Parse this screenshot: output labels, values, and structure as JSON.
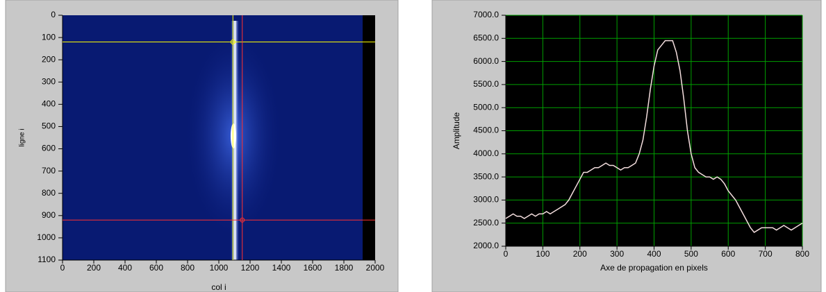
{
  "chart_data": [
    {
      "type": "intensity",
      "xlabel": "col i",
      "ylabel": "ligne i",
      "xlim": [
        0,
        2000
      ],
      "xticks": [
        0,
        200,
        400,
        600,
        800,
        1000,
        1200,
        1400,
        1600,
        1800,
        2000
      ],
      "ylim": [
        0,
        1100
      ],
      "yticks": [
        0,
        100,
        200,
        300,
        400,
        500,
        600,
        700,
        800,
        900,
        1000,
        1100
      ],
      "cursors": [
        {
          "x": 1090,
          "y": 120,
          "color": "#ffff00"
        },
        {
          "x": 1150,
          "y": 920,
          "color": "#ff3030"
        }
      ]
    },
    {
      "type": "line",
      "xlabel": "Axe de propagation en pixels",
      "ylabel": "Amplitude",
      "xlim": [
        0,
        800
      ],
      "xticks": [
        0,
        100,
        200,
        300,
        400,
        500,
        600,
        700,
        800
      ],
      "ylim": [
        2000,
        7000
      ],
      "yticks": [
        {
          "value": 2000,
          "label": "2000.0"
        },
        {
          "value": 2500,
          "label": "2500.0"
        },
        {
          "value": 3000,
          "label": "3000.0"
        },
        {
          "value": 3500,
          "label": "3500.0"
        },
        {
          "value": 4000,
          "label": "4000.0"
        },
        {
          "value": 4500,
          "label": "4500.0"
        },
        {
          "value": 5000,
          "label": "5000.0"
        },
        {
          "value": 5500,
          "label": "5500.0"
        },
        {
          "value": 6000,
          "label": "6000.0"
        },
        {
          "value": 6500,
          "label": "6500.0"
        },
        {
          "value": 7000,
          "label": "7000.0"
        }
      ],
      "grid": true,
      "grid_color": "#00a000",
      "x": [
        0,
        10,
        20,
        30,
        40,
        50,
        60,
        70,
        80,
        90,
        100,
        110,
        120,
        130,
        140,
        150,
        160,
        170,
        180,
        190,
        200,
        210,
        220,
        230,
        240,
        250,
        260,
        270,
        280,
        290,
        300,
        310,
        320,
        330,
        340,
        350,
        360,
        370,
        380,
        390,
        400,
        410,
        420,
        430,
        440,
        450,
        460,
        470,
        480,
        490,
        500,
        510,
        520,
        530,
        540,
        550,
        560,
        570,
        580,
        590,
        600,
        610,
        620,
        630,
        640,
        650,
        660,
        670,
        680,
        690,
        700,
        710,
        720,
        730,
        740,
        750,
        760,
        770,
        780,
        790,
        800
      ],
      "series": [
        {
          "color": "#f4dede",
          "values": [
            2600,
            2650,
            2700,
            2650,
            2650,
            2600,
            2650,
            2700,
            2650,
            2700,
            2700,
            2750,
            2700,
            2750,
            2800,
            2850,
            2900,
            3000,
            3150,
            3300,
            3450,
            3600,
            3600,
            3650,
            3700,
            3700,
            3750,
            3800,
            3750,
            3750,
            3700,
            3650,
            3700,
            3700,
            3750,
            3800,
            4000,
            4300,
            4800,
            5400,
            5900,
            6250,
            6350,
            6450,
            6450,
            6450,
            6200,
            5800,
            5200,
            4500,
            4000,
            3700,
            3600,
            3550,
            3500,
            3500,
            3450,
            3500,
            3450,
            3350,
            3200,
            3100,
            3000,
            2850,
            2700,
            2550,
            2400,
            2300,
            2350,
            2400,
            2400,
            2400,
            2400,
            2350,
            2400,
            2450,
            2400,
            2350,
            2400,
            2450,
            2500
          ]
        }
      ]
    }
  ]
}
